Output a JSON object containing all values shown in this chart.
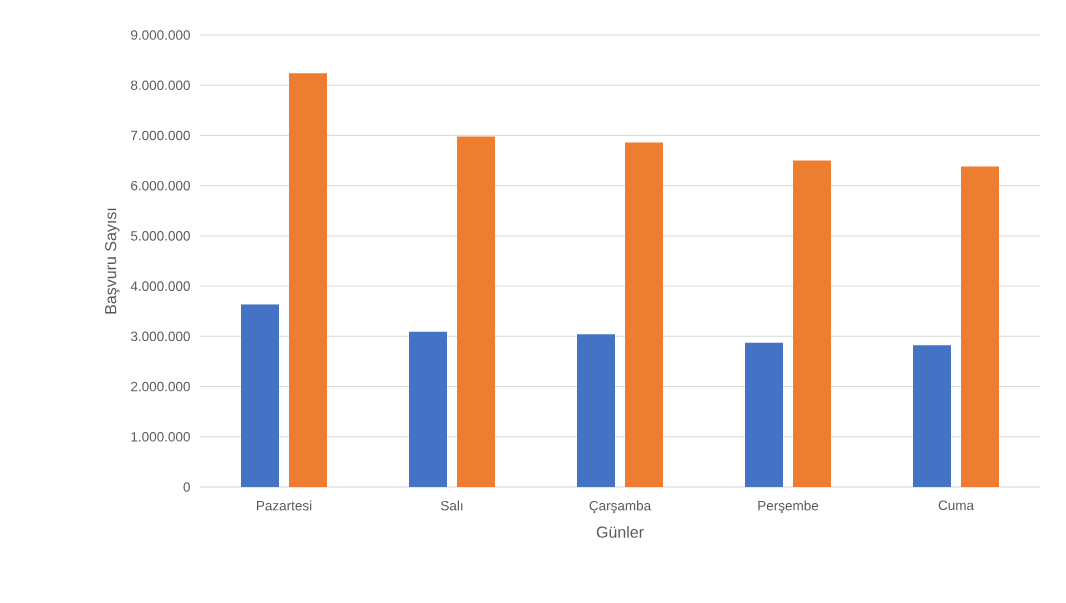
{
  "chart_data": {
    "type": "bar",
    "xlabel": "Günler",
    "ylabel": "Başvuru Sayısı",
    "categories": [
      "Pazartesi",
      "Salı",
      "Çarşamba",
      "Perşembe",
      "Cuma"
    ],
    "series": [
      {
        "color": "#4472c4",
        "values": [
          3640000,
          3090000,
          3040000,
          2870000,
          2820000
        ]
      },
      {
        "color": "#ed7d31",
        "values": [
          8240000,
          6980000,
          6860000,
          6500000,
          6380000
        ]
      }
    ],
    "ylim": [
      0,
      9000000
    ],
    "yticks": [
      0,
      {
        "value": 1000000,
        "label": "1.000.000"
      },
      {
        "value": 2000000,
        "label": "2.000.000"
      },
      {
        "value": 3000000,
        "label": "3.000.000"
      },
      {
        "value": 4000000,
        "label": "4.000.000"
      },
      {
        "value": 5000000,
        "label": "5.000.000"
      },
      {
        "value": 6000000,
        "label": "6.000.000"
      },
      {
        "value": 7000000,
        "label": "7.000.000"
      },
      {
        "value": 8000000,
        "label": "8.000.000"
      },
      {
        "value": 9000000,
        "label": "9.000.000"
      }
    ],
    "grid": "y"
  }
}
